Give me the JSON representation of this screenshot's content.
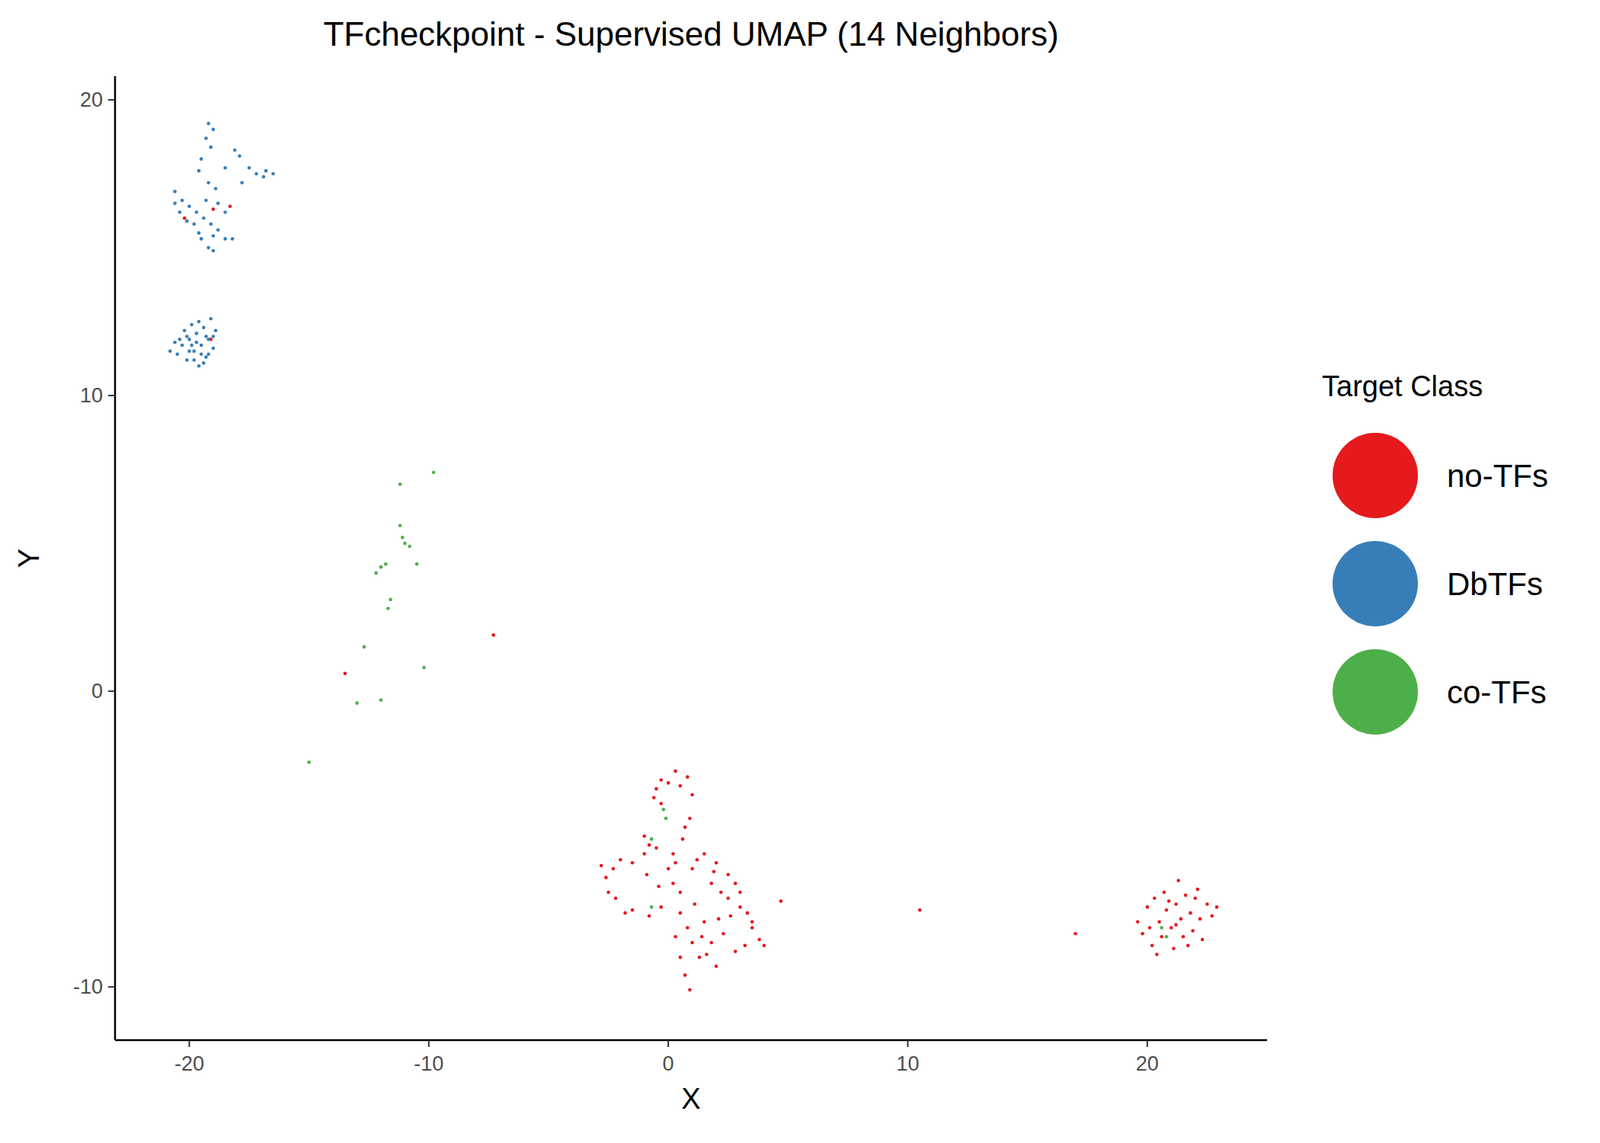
{
  "chart_data": {
    "type": "scatter",
    "title": "TFcheckpoint - Supervised UMAP (14 Neighbors)",
    "x_label": "X",
    "y_label": "Y",
    "legend_title": "Target Class",
    "legend": "right",
    "grid": false,
    "xlim": [
      -23.1,
      25
    ],
    "ylim": [
      -11.8,
      20.8
    ],
    "xticks": [
      -20,
      -10,
      0,
      10,
      20
    ],
    "yticks": [
      -10,
      0,
      10,
      20
    ],
    "series": [
      {
        "name": "no-TFs",
        "color": "#e41a1c",
        "marker": "circle",
        "x": [
          -0.5,
          -0.3,
          0.3,
          0.8,
          1.0,
          0.9,
          0.6,
          0.2,
          -0.3,
          -0.6,
          0.0,
          0.5,
          0.0,
          -0.5,
          -1.0,
          -1.5,
          -2.3,
          -2.6,
          -2.2,
          -1.5,
          -0.8,
          -0.3,
          0.2,
          0.3,
          -0.8,
          -2.0,
          -2.5,
          -1.8,
          0.5,
          1.0,
          1.5,
          2.0,
          2.5,
          3.0,
          3.3,
          3.5,
          3.8,
          4.0,
          2.5,
          1.8,
          2.2,
          0.5,
          0.8,
          1.0,
          0.5,
          0.7,
          0.9,
          1.3,
          1.8,
          2.3,
          1.5,
          2.8,
          3.2,
          1.1,
          0.3,
          2.0,
          2.6,
          3.0,
          1.6,
          -0.9,
          -0.4,
          0.7,
          1.2,
          2.8,
          3.5,
          1.4,
          2.1,
          -2.8,
          -1.0,
          1.9,
          4.7,
          10.5,
          17.0,
          -7.3,
          -13.5,
          19.6,
          19.8,
          20.0,
          20.2,
          20.3,
          20.5,
          20.6,
          20.7,
          20.8,
          21.0,
          21.1,
          21.2,
          21.3,
          21.4,
          21.5,
          21.6,
          21.8,
          21.9,
          22.0,
          22.2,
          22.3,
          22.5,
          22.7,
          22.9,
          20.1,
          20.9,
          21.7,
          22.1,
          20.4,
          21.2,
          -19.0,
          -18.3,
          -19.1,
          -20.2
        ],
        "values": [
          -3.3,
          -3.0,
          -2.7,
          -2.9,
          -3.5,
          -4.3,
          -5.0,
          -5.5,
          -3.8,
          -3.6,
          -3.1,
          -3.2,
          -6.0,
          -5.3,
          -5.5,
          -5.8,
          -6.0,
          -6.3,
          -7.0,
          -7.4,
          -7.6,
          -7.3,
          -6.5,
          -5.8,
          -5.2,
          -5.7,
          -6.8,
          -7.5,
          -6.8,
          -6.0,
          -5.5,
          -5.8,
          -6.2,
          -6.8,
          -7.5,
          -8.0,
          -8.4,
          -8.6,
          -7.0,
          -6.5,
          -6.8,
          -7.5,
          -8.0,
          -8.5,
          -9.0,
          -9.6,
          -10.1,
          -9.0,
          -8.5,
          -8.2,
          -7.8,
          -8.8,
          -8.6,
          -7.2,
          -8.3,
          -9.3,
          -7.6,
          -7.3,
          -8.9,
          -6.2,
          -6.6,
          -4.6,
          -5.7,
          -6.5,
          -7.8,
          -8.3,
          -7.7,
          -5.9,
          -4.9,
          -6.1,
          -7.1,
          -7.4,
          -8.2,
          1.9,
          0.6,
          -7.8,
          -8.2,
          -7.3,
          -8.6,
          -7.0,
          -7.8,
          -8.3,
          -6.8,
          -7.4,
          -8.0,
          -8.7,
          -7.2,
          -6.4,
          -7.7,
          -8.3,
          -6.9,
          -7.5,
          -8.1,
          -7.0,
          -7.7,
          -8.4,
          -7.2,
          -7.6,
          -7.3,
          -8.0,
          -7.1,
          -8.6,
          -6.7,
          -8.9,
          -7.9,
          16.3,
          16.4,
          11.9,
          16.0
        ]
      },
      {
        "name": "DbTFs",
        "color": "#377eb8",
        "marker": "circle",
        "x": [
          -19.2,
          -19.0,
          -19.3,
          -19.1,
          -19.5,
          -19.6,
          -18.1,
          -17.9,
          -17.2,
          -16.8,
          -16.5,
          -16.9,
          -17.5,
          -17.8,
          -18.5,
          -20.6,
          -20.3,
          -20.0,
          -19.7,
          -19.4,
          -19.1,
          -18.8,
          -19.5,
          -19.2,
          -19.0,
          -18.5,
          -18.2,
          -19.8,
          -20.4,
          -20.6,
          -19.3,
          -18.8,
          -18.5,
          -19.6,
          -20.1,
          -19.0,
          -18.9,
          -19.2,
          -20.8,
          -20.5,
          -20.3,
          -20.1,
          -20.0,
          -19.8,
          -19.7,
          -19.6,
          -19.5,
          -19.4,
          -19.3,
          -19.2,
          -19.1,
          -19.0,
          -18.9,
          -20.2,
          -20.4,
          -19.9,
          -19.6,
          -19.3,
          -19.8,
          -20.0,
          -19.5,
          -19.2,
          -20.6,
          -19.0,
          -19.7,
          -19.4,
          -20.1,
          -19.9
        ],
        "values": [
          19.2,
          19.0,
          18.7,
          18.4,
          18.0,
          17.6,
          18.3,
          18.1,
          17.5,
          17.6,
          17.5,
          17.4,
          17.7,
          17.2,
          17.7,
          16.9,
          16.6,
          16.4,
          16.2,
          16.0,
          15.8,
          15.6,
          15.3,
          15.0,
          14.9,
          15.3,
          15.3,
          15.8,
          16.2,
          16.5,
          16.6,
          16.5,
          16.2,
          15.5,
          15.9,
          15.4,
          17.0,
          17.2,
          11.5,
          11.4,
          11.7,
          11.2,
          11.9,
          11.5,
          12.1,
          11.0,
          11.7,
          12.3,
          11.3,
          11.9,
          12.6,
          11.6,
          12.2,
          12.2,
          11.9,
          12.4,
          12.5,
          12.0,
          11.2,
          11.5,
          11.4,
          11.4,
          11.8,
          12.0,
          11.8,
          11.1,
          12.0,
          11.7
        ]
      },
      {
        "name": "co-TFs",
        "color": "#4daf4a",
        "marker": "circle",
        "x": [
          -11.2,
          -11.0,
          -10.8,
          -11.1,
          -12.0,
          -12.2,
          -11.8,
          -10.5,
          -11.6,
          -11.7,
          -12.7,
          -11.2,
          -9.8,
          -10.2,
          -13.0,
          -12.0,
          -15.0,
          -0.2,
          -0.1,
          -0.7,
          -0.7,
          20.6,
          20.8
        ],
        "values": [
          5.6,
          5.0,
          4.9,
          5.2,
          4.2,
          4.0,
          4.3,
          4.3,
          3.1,
          2.8,
          1.5,
          7.0,
          7.4,
          0.8,
          -0.4,
          -0.3,
          -2.4,
          -4.0,
          -4.3,
          -5.0,
          -7.3,
          -8.0,
          -8.3
        ]
      }
    ]
  }
}
